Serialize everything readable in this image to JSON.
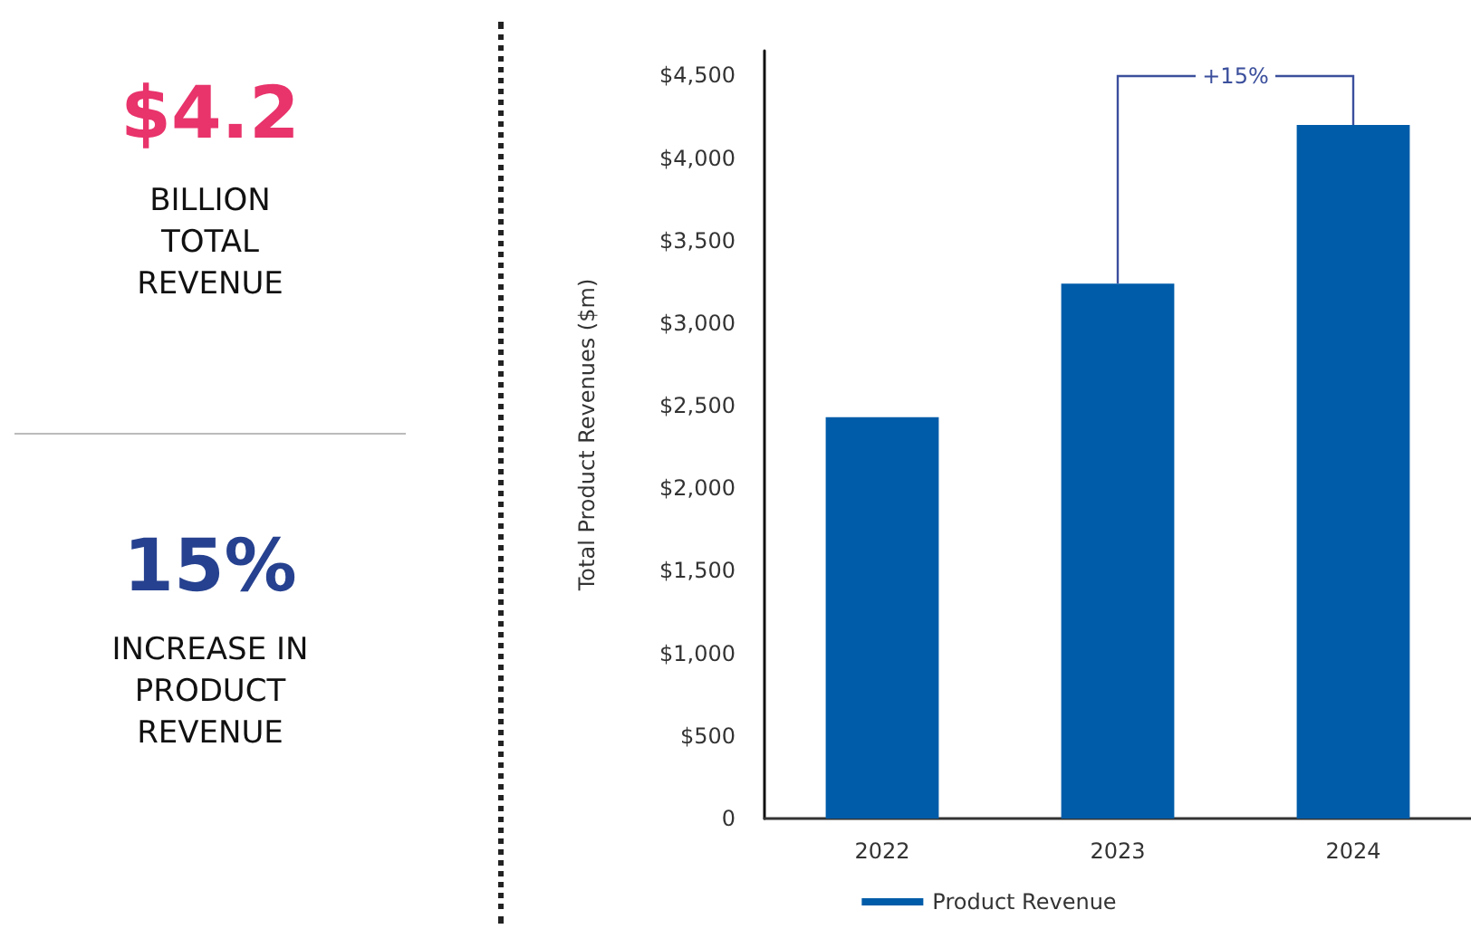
{
  "chart_data": [
    {
      "type": "other",
      "annotations": [
        "$4.2",
        "BILLION TOTAL REVENUE",
        "15%",
        "INCREASE IN PRODUCT REVENUE"
      ]
    },
    {
      "type": "bar",
      "ylabel": "Total Product Revenues ($m)",
      "categories": [
        "2022",
        "2023",
        "2024"
      ],
      "series": [
        {
          "name": "Product Revenue",
          "color": "#005ca9",
          "values": [
            2430,
            3240,
            4200
          ]
        }
      ],
      "ylim": [
        0,
        4650
      ],
      "yticks": [
        {
          "value": 0,
          "label": "0"
        },
        {
          "value": 500,
          "label": "$500"
        },
        {
          "value": 1000,
          "label": "$1,000"
        },
        {
          "value": 1500,
          "label": "$1,500"
        },
        {
          "value": 2000,
          "label": "$2,000"
        },
        {
          "value": 2500,
          "label": "$2,500"
        },
        {
          "value": 3000,
          "label": "$3,000"
        },
        {
          "value": 3500,
          "label": "$3,500"
        },
        {
          "value": 4000,
          "label": "$4,000"
        },
        {
          "value": 4500,
          "label": "$4,500"
        }
      ],
      "annotations": [
        {
          "text": "+15%",
          "x": "2024",
          "y": 4200
        }
      ],
      "grid": false,
      "legend": "bottom"
    }
  ]
}
